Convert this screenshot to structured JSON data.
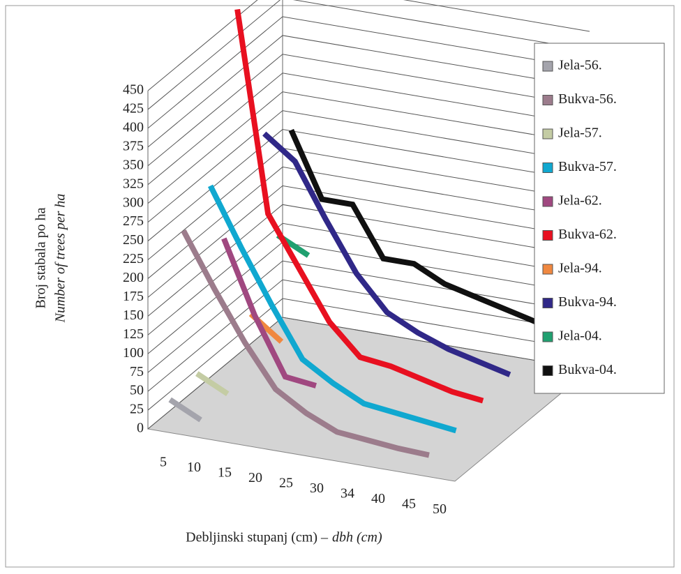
{
  "chart_data": {
    "type": "line3d",
    "y_label": "Broj stabala po ha",
    "y_label_italic": "Number of trees per ha",
    "x_label": "Debljinski stupanj (cm) –",
    "x_label_italic": "dbh (cm)",
    "categories": [
      "5",
      "10",
      "15",
      "20",
      "25",
      "30",
      "34",
      "40",
      "45",
      "50"
    ],
    "ylim": [
      0,
      450
    ],
    "yticks": [
      0,
      25,
      50,
      75,
      100,
      125,
      150,
      175,
      200,
      225,
      250,
      275,
      300,
      325,
      350,
      375,
      400,
      425,
      450
    ],
    "grid": true,
    "series": [
      {
        "name": "Jela-56.",
        "color": "#a4a4ac",
        "values": [
          35,
          15,
          null,
          null,
          null,
          null,
          null,
          null,
          null,
          null
        ]
      },
      {
        "name": "Bukva-56.",
        "color": "#9c7c8c",
        "values": [
          245,
          175,
          110,
          55,
          30,
          12,
          8,
          4,
          2,
          null
        ]
      },
      {
        "name": "Jela-57.",
        "color": "#c4cca4",
        "values": [
          40,
          20,
          null,
          null,
          null,
          null,
          null,
          null,
          null,
          null
        ]
      },
      {
        "name": "Bukva-57.",
        "color": "#10a8d0",
        "values": [
          275,
          200,
          130,
          65,
          40,
          20,
          15,
          10,
          5,
          null
        ]
      },
      {
        "name": "Jela-62.",
        "color": "#a04880",
        "values": [
          190,
          95,
          20,
          15,
          null,
          null,
          null,
          null,
          null,
          null
        ]
      },
      {
        "name": "Bukva-62.",
        "color": "#e81020",
        "values": [
          480,
          215,
          150,
          85,
          45,
          40,
          30,
          20,
          15,
          null
        ]
      },
      {
        "name": "Jela-94.",
        "color": "#f08840",
        "values": [
          60,
          30,
          null,
          null,
          null,
          null,
          null,
          null,
          null,
          null
        ]
      },
      {
        "name": "Bukva-94.",
        "color": "#302888",
        "values": [
          285,
          255,
          185,
          120,
          75,
          55,
          40,
          30,
          20,
          null
        ]
      },
      {
        "name": "Jela-04.",
        "color": "#20a070",
        "values": [
          135,
          115,
          null,
          null,
          null,
          null,
          null,
          null,
          null,
          null
        ]
      },
      {
        "name": "Bukva-04.",
        "color": "#101010",
        "values": [
          260,
          175,
          175,
          110,
          110,
          90,
          80,
          70,
          60,
          50
        ]
      }
    ]
  }
}
